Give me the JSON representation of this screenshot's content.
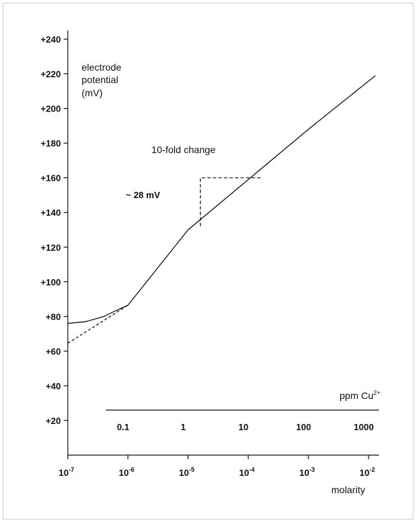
{
  "chart_data": {
    "type": "line",
    "y_axis": {
      "label_lines": [
        "electrode",
        "potential",
        "(mV)"
      ],
      "ticks": [
        240,
        220,
        200,
        180,
        160,
        140,
        120,
        100,
        80,
        60,
        40,
        20
      ],
      "tick_labels": [
        "+240",
        "+220",
        "+200",
        "+180",
        "+160",
        "+140",
        "+120",
        "+100",
        "+80",
        "+60",
        "+40",
        "+20"
      ],
      "ylim": [
        0,
        245
      ]
    },
    "molarity_axis": {
      "label": "molarity",
      "log_scale": true,
      "ticks": [
        1e-07,
        1e-06,
        1e-05,
        0.0001,
        0.001,
        0.01
      ],
      "tick_labels": [
        {
          "base": "10",
          "exp": "-7"
        },
        {
          "base": "10",
          "exp": "-6"
        },
        {
          "base": "10",
          "exp": "-5"
        },
        {
          "base": "10",
          "exp": "-4"
        },
        {
          "base": "10",
          "exp": "-3"
        },
        {
          "base": "10",
          "exp": "-2"
        }
      ],
      "xlim": [
        1e-07,
        0.05
      ]
    },
    "ppm_axis": {
      "label_base": "ppm Cu",
      "label_sup": "2+",
      "log_scale": true,
      "ticks": [
        0.1,
        1,
        10,
        100,
        1000
      ],
      "tick_labels": [
        "0.1",
        "1",
        "10",
        "100",
        "1000"
      ],
      "start_molarity": 1e-06
    },
    "series": [
      {
        "style": "solid",
        "x": [
          1e-07,
          2e-07,
          4e-07,
          6e-07,
          1e-06,
          1e-05,
          0.0001,
          0.001,
          0.013
        ],
        "y": [
          76,
          77,
          80,
          83,
          86.5,
          130,
          159,
          188,
          219
        ]
      },
      {
        "style": "dashed",
        "x": [
          1e-07,
          1e-06
        ],
        "y": [
          64.5,
          86.5
        ]
      }
    ],
    "annotations": {
      "tenfold_label": "10-fold change",
      "mv_label": "~  28 mV",
      "step": {
        "x_from": 1.6e-05,
        "x_to": 0.00016,
        "y_from": 131,
        "y_to": 160
      }
    },
    "grid": false
  }
}
